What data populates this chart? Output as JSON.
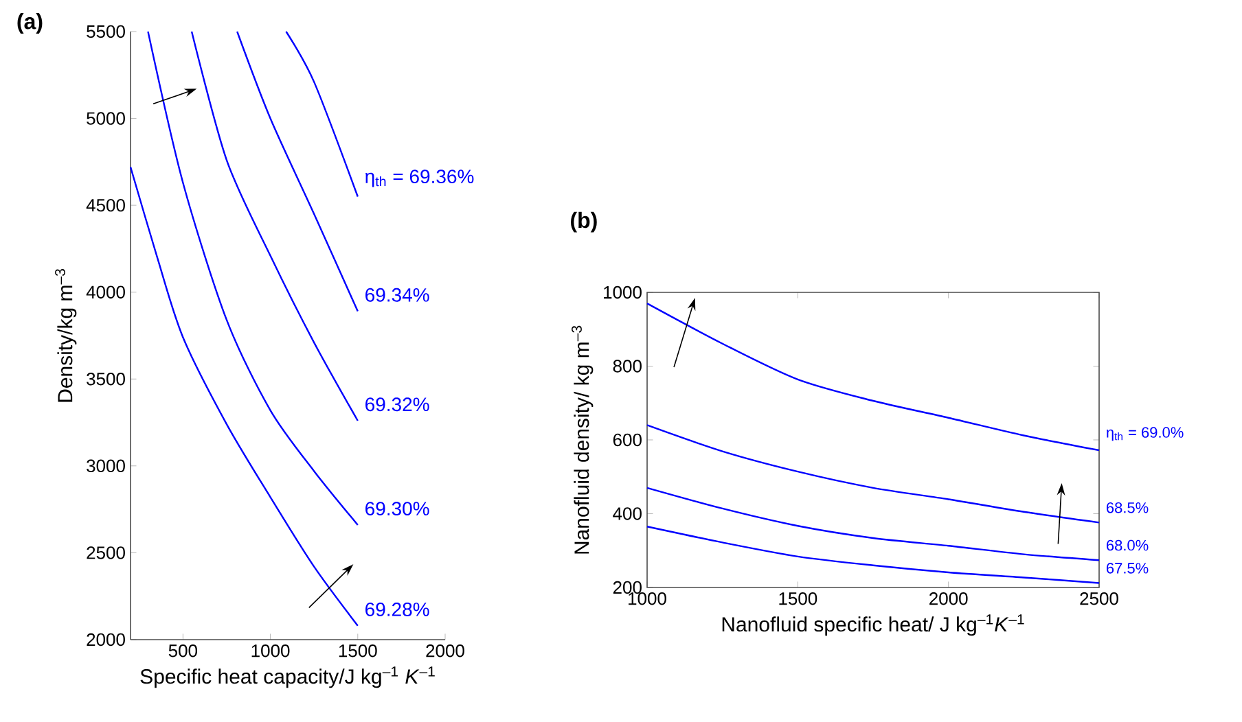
{
  "chart_data": [
    {
      "type": "line",
      "title": "(a)",
      "xlabel": "Specific heat capacity/J kg$^{–1}$ *K*$^{–1}$",
      "ylabel": "Density/kg m$^{–3}$",
      "xlim": [
        200,
        2000
      ],
      "ylim": [
        2000,
        5500
      ],
      "xticks": [
        500,
        1000,
        1500,
        2000
      ],
      "yticks": [
        2000,
        2500,
        3000,
        3500,
        4000,
        4500,
        5000,
        5500
      ],
      "marker": "none",
      "line_style": "solid",
      "series": [
        {
          "name": "69.28%",
          "color": "#0000ff",
          "x": [
            200,
            350,
            500,
            750,
            1000,
            1250,
            1500
          ],
          "values": [
            4720,
            4210,
            3740,
            3240,
            2820,
            2420,
            2080
          ]
        },
        {
          "name": "69.30%",
          "color": "#0000ff",
          "x": [
            300,
            500,
            750,
            1000,
            1250,
            1500
          ],
          "values": [
            5500,
            4630,
            3840,
            3320,
            2970,
            2660
          ]
        },
        {
          "name": "69.32%",
          "color": "#0000ff",
          "x": [
            550,
            750,
            1000,
            1250,
            1500
          ],
          "values": [
            5500,
            4760,
            4210,
            3710,
            3260
          ]
        },
        {
          "name": "69.34%",
          "color": "#0000ff",
          "x": [
            810,
            1000,
            1250,
            1500
          ],
          "values": [
            5500,
            5000,
            4450,
            3890
          ]
        },
        {
          "name": "η$_{th}$ = 69.36%",
          "color": "#0000ff",
          "x": [
            1090,
            1250,
            1500
          ],
          "values": [
            5500,
            5210,
            4550
          ]
        }
      ]
    },
    {
      "type": "line",
      "title": "(b)",
      "xlabel": "Nanofluid specific heat/ J kg$^{–1}$*K*$^{–1}$",
      "ylabel": "Nanofluid density/ kg m$^{–3}$",
      "xlim": [
        1000,
        2500
      ],
      "ylim": [
        200,
        1000
      ],
      "xticks": [
        1000,
        1500,
        2000,
        2500
      ],
      "yticks": [
        200,
        400,
        600,
        800,
        1000
      ],
      "marker": "none",
      "line_style": "solid",
      "series": [
        {
          "name": "η$_{th}$ = 69.0%",
          "color": "#0000ff",
          "x": [
            1000,
            1250,
            1500,
            1750,
            2000,
            2250,
            2500
          ],
          "values": [
            970,
            861,
            764,
            706,
            660,
            612,
            572
          ]
        },
        {
          "name": "68.5%",
          "color": "#0000ff",
          "x": [
            1000,
            1250,
            1500,
            1750,
            2000,
            2250,
            2500
          ],
          "values": [
            640,
            569,
            514,
            470,
            439,
            405,
            376
          ]
        },
        {
          "name": "68.0%",
          "color": "#0000ff",
          "x": [
            1000,
            1250,
            1500,
            1750,
            2000,
            2250,
            2500
          ],
          "values": [
            470,
            414,
            367,
            334,
            313,
            290,
            274
          ]
        },
        {
          "name": "67.5%",
          "color": "#0000ff",
          "x": [
            1000,
            1250,
            1500,
            1750,
            2000,
            2250,
            2500
          ],
          "values": [
            365,
            322,
            284,
            260,
            241,
            227,
            212
          ]
        }
      ]
    }
  ]
}
